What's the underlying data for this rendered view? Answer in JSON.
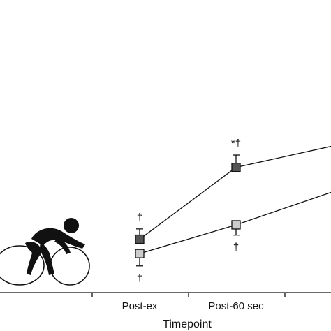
{
  "chart_data": {
    "type": "line",
    "xlabel": "Timepoint",
    "ylabel": "",
    "categories": [
      "",
      "Post-ex",
      "Post-60 sec",
      ""
    ],
    "ylim": [
      0,
      100
    ],
    "series": [
      {
        "color": "#555555",
        "points": [
          {
            "category": "Post-ex",
            "y": 26,
            "err": 5,
            "marker": "†",
            "marker_side": "above"
          },
          {
            "category": "Post-60 sec",
            "y": 61,
            "err": 6,
            "marker": "*†",
            "marker_side": "above"
          },
          {
            "category": "",
            "y": 72,
            "err": 0,
            "marker": "",
            "marker_side": "above"
          }
        ]
      },
      {
        "color": "#cccccc",
        "points": [
          {
            "category": "Post-ex",
            "y": 19,
            "err": 6,
            "marker": "†",
            "marker_side": "below"
          },
          {
            "category": "Post-60 sec",
            "y": 33,
            "err": 5,
            "marker": "†",
            "marker_side": "below"
          },
          {
            "category": "",
            "y": 50,
            "err": 0,
            "marker": "",
            "marker_side": "above"
          }
        ]
      }
    ],
    "grid": false,
    "legend": "none"
  },
  "icons": {
    "cyclist": "cyclist-icon"
  }
}
